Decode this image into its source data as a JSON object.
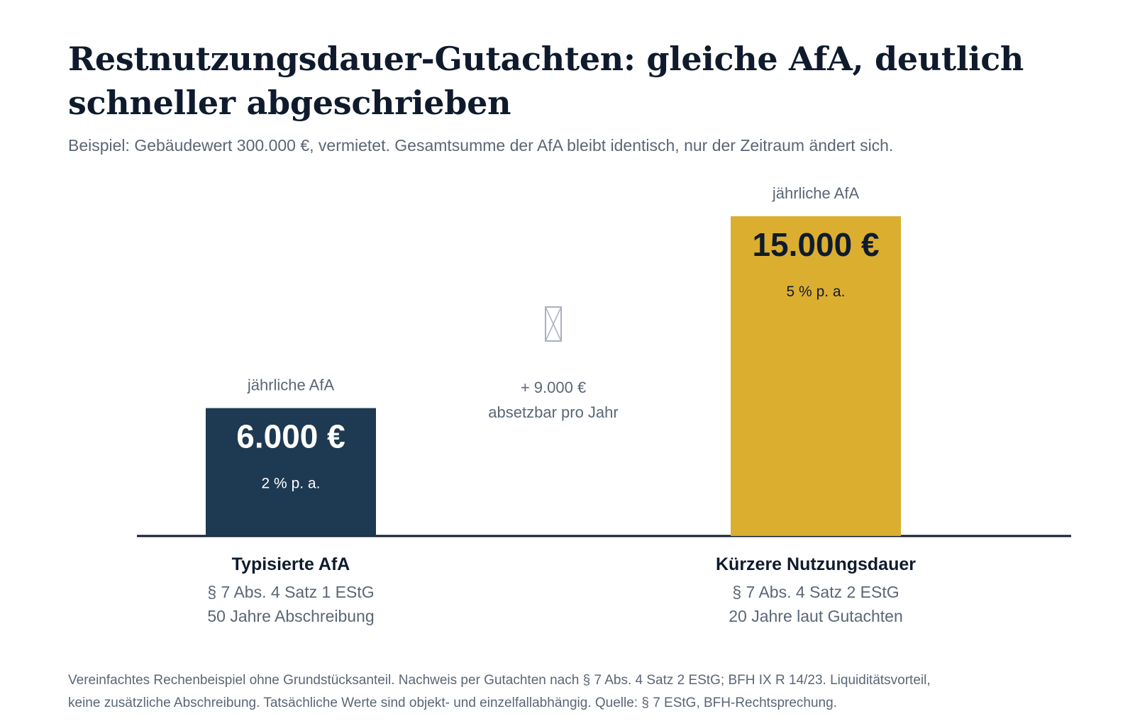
{
  "title_line1": "Restnutzungsdauer-Gutachten: gleiche AfA, deutlich",
  "title_line2": "schneller abgeschrieben",
  "subtitle": "Beispiel: Gebäudewert 300.000 €, vermietet. Gesamtsumme der AfA bleibt identisch, nur der Zeitraum ändert sich.",
  "colors": {
    "bar_typical": "#1e3a52",
    "bar_short": "#dbae30",
    "axis": "#0f1b2d",
    "muted_text": "#5b6676",
    "icon": "#a9b1bc"
  },
  "chart_data": {
    "type": "bar",
    "categories": [
      "Typisierte AfA",
      "Kürzere Nutzungsdauer"
    ],
    "values": [
      6000,
      15000
    ],
    "unit": "€",
    "ylim": [
      0,
      15000
    ],
    "grid": false,
    "bars": [
      {
        "above_label": "jährliche AfA",
        "value_label": "6.000 €",
        "rate_label": "2 % p. a.",
        "name": "Typisierte AfA",
        "law": "§ 7 Abs. 4 Satz 1 EStG",
        "duration": "50 Jahre Abschreibung"
      },
      {
        "above_label": "jährliche AfA",
        "value_label": "15.000 €",
        "rate_label": "5 % p. a.",
        "name": "Kürzere Nutzungsdauer",
        "law": "§ 7 Abs. 4 Satz 2 EStG",
        "duration": "20 Jahre laut Gutachten"
      }
    ],
    "difference": {
      "icon": "missing-glyph-icon",
      "line1": "+ 9.000 €",
      "line2": "absetzbar pro Jahr"
    }
  },
  "footnote_line1": "Vereinfachtes Rechenbeispiel ohne Grundstücksanteil. Nachweis per Gutachten nach § 7 Abs. 4 Satz 2 EStG; BFH IX R 14/23. Liquiditätsvorteil,",
  "footnote_line2": "keine zusätzliche Abschreibung. Tatsächliche Werte sind objekt- und einzelfallabhängig. Quelle: § 7 EStG, BFH-Rechtsprechung."
}
